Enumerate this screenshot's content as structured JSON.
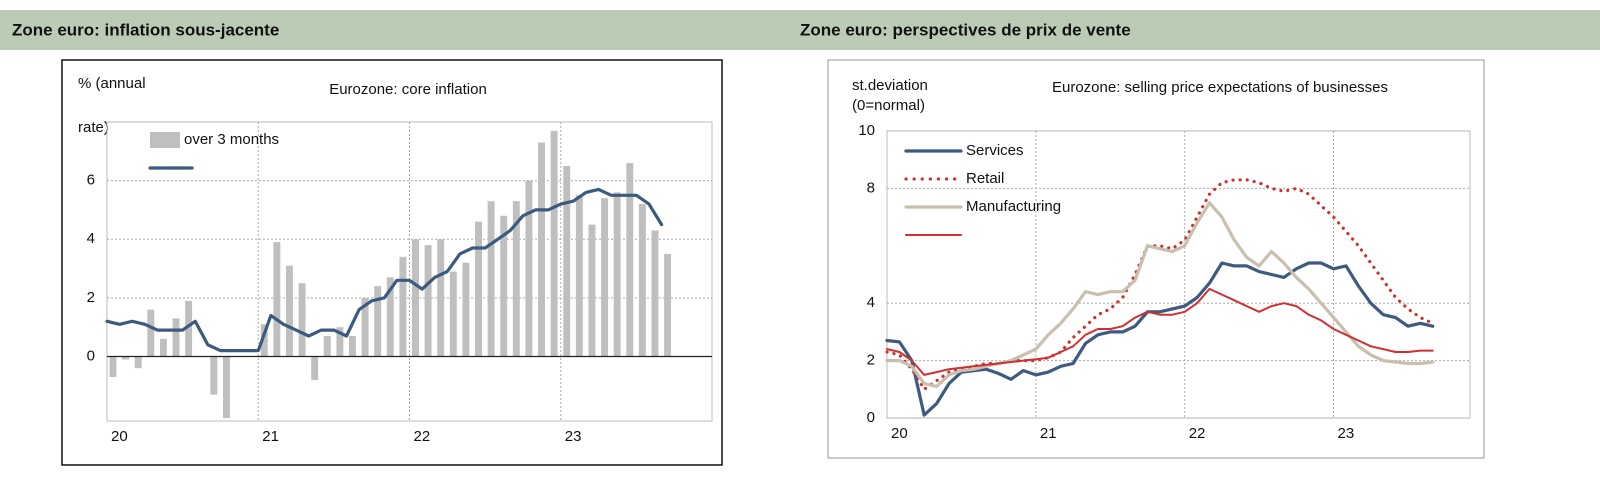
{
  "headers": [
    "Zone euro: inflation sous-jacente",
    "Zone euro: perspectives de prix de vente"
  ],
  "chart_data": [
    {
      "type": "combo",
      "title": "Eurozone: core inflation",
      "y_label": [
        "% (annual",
        "rate)"
      ],
      "categories": [
        "20",
        null,
        null,
        null,
        null,
        null,
        null,
        null,
        null,
        null,
        null,
        null,
        "21",
        null,
        null,
        null,
        null,
        null,
        null,
        null,
        null,
        null,
        null,
        null,
        "22",
        null,
        null,
        null,
        null,
        null,
        null,
        null,
        null,
        null,
        null,
        null,
        "23",
        null,
        null,
        null,
        null,
        null,
        null,
        null,
        null
      ],
      "ylim": [
        -2.2,
        8
      ],
      "yticks": [
        0,
        2,
        4,
        6
      ],
      "grid": true,
      "legend": "top-left",
      "series": [
        {
          "name": "over 3 months",
          "type": "bar",
          "color": "#bfbfbf",
          "values": [
            -0.7,
            -0.1,
            -0.4,
            1.6,
            0.6,
            1.3,
            1.9,
            0.0,
            -1.3,
            -2.1,
            0.0,
            0.0,
            1.1,
            3.9,
            3.1,
            2.5,
            -0.8,
            0.7,
            1.0,
            0.7,
            2.0,
            2.4,
            2.7,
            3.4,
            4.0,
            3.8,
            4.0,
            2.9,
            3.2,
            4.6,
            5.3,
            4.8,
            5.3,
            6.0,
            7.3,
            7.7,
            6.5,
            5.5,
            4.5,
            5.4,
            5.6,
            6.6,
            5.2,
            4.3,
            3.5
          ]
        },
        {
          "type": "line",
          "color": "#3b5a80",
          "values": [
            1.2,
            1.1,
            1.2,
            1.1,
            0.9,
            0.9,
            0.9,
            1.2,
            0.4,
            0.2,
            0.2,
            0.2,
            0.2,
            1.4,
            1.1,
            0.9,
            0.7,
            0.9,
            0.9,
            0.7,
            1.6,
            1.9,
            2.0,
            2.6,
            2.6,
            2.3,
            2.7,
            2.9,
            3.5,
            3.7,
            3.7,
            4.0,
            4.3,
            4.8,
            5.0,
            5.0,
            5.2,
            5.3,
            5.6,
            5.7,
            5.5,
            5.5,
            5.5,
            5.2,
            4.5
          ]
        }
      ]
    },
    {
      "type": "line",
      "title": "Eurozone: selling price expectations of businesses",
      "y_label": [
        "st.deviation",
        "(0=normal)"
      ],
      "categories": [
        "20",
        null,
        null,
        null,
        null,
        null,
        null,
        null,
        null,
        null,
        null,
        null,
        "21",
        null,
        null,
        null,
        null,
        null,
        null,
        null,
        null,
        null,
        null,
        null,
        "22",
        null,
        null,
        null,
        null,
        null,
        null,
        null,
        null,
        null,
        null,
        null,
        "23",
        null,
        null,
        null,
        null,
        null,
        null,
        null,
        null
      ],
      "ylim": [
        0,
        10
      ],
      "yticks": [
        0,
        2,
        4,
        8,
        10
      ],
      "grid": true,
      "legend": "top-left",
      "series": [
        {
          "name": "Services",
          "color": "#3d5a80",
          "style": "solid",
          "values": [
            2.7,
            2.65,
            2.0,
            0.1,
            0.5,
            1.2,
            1.6,
            1.65,
            1.7,
            1.55,
            1.35,
            1.65,
            1.5,
            1.6,
            1.8,
            1.9,
            2.6,
            2.9,
            3.0,
            3.0,
            3.2,
            3.7,
            3.7,
            3.8,
            3.9,
            4.2,
            4.7,
            5.4,
            5.3,
            5.3,
            5.1,
            5.0,
            4.9,
            5.2,
            5.4,
            5.4,
            5.2,
            5.3,
            4.6,
            4.0,
            3.6,
            3.5,
            3.2,
            3.3,
            3.2
          ]
        },
        {
          "name": "Retail",
          "color": "#d03030",
          "style": "dotted",
          "values": [
            2.3,
            2.2,
            1.7,
            1.0,
            1.3,
            1.6,
            1.7,
            1.8,
            1.9,
            1.9,
            2.0,
            2.0,
            2.0,
            2.1,
            2.3,
            2.8,
            3.2,
            3.6,
            3.8,
            4.2,
            5.0,
            6.0,
            6.0,
            5.9,
            6.2,
            7.0,
            7.8,
            8.2,
            8.3,
            8.3,
            8.2,
            8.0,
            7.9,
            8.0,
            7.8,
            7.4,
            7.0,
            6.5,
            6.0,
            5.4,
            4.8,
            4.2,
            3.8,
            3.5,
            3.3
          ]
        },
        {
          "name": "Manufacturing",
          "color": "#c9bfae",
          "style": "solid",
          "values": [
            2.0,
            2.0,
            1.8,
            1.2,
            1.1,
            1.5,
            1.65,
            1.7,
            1.8,
            1.9,
            2.0,
            2.2,
            2.4,
            2.9,
            3.3,
            3.8,
            4.4,
            4.3,
            4.4,
            4.4,
            4.8,
            6.0,
            5.9,
            5.8,
            6.0,
            6.8,
            7.5,
            7.0,
            6.2,
            5.6,
            5.3,
            5.8,
            5.4,
            4.9,
            4.5,
            4.0,
            3.5,
            3.0,
            2.5,
            2.2,
            2.0,
            1.95,
            1.9,
            1.9,
            1.95
          ]
        },
        {
          "color": "#d03030",
          "style": "thin",
          "values": [
            2.4,
            2.3,
            2.0,
            1.5,
            1.6,
            1.7,
            1.75,
            1.8,
            1.85,
            1.9,
            1.95,
            2.0,
            2.05,
            2.1,
            2.3,
            2.5,
            2.9,
            3.1,
            3.1,
            3.2,
            3.5,
            3.7,
            3.6,
            3.6,
            3.7,
            4.0,
            4.5,
            4.3,
            4.1,
            3.9,
            3.7,
            3.9,
            4.0,
            3.9,
            3.6,
            3.4,
            3.1,
            2.9,
            2.7,
            2.5,
            2.4,
            2.3,
            2.3,
            2.35,
            2.35
          ]
        }
      ]
    }
  ]
}
